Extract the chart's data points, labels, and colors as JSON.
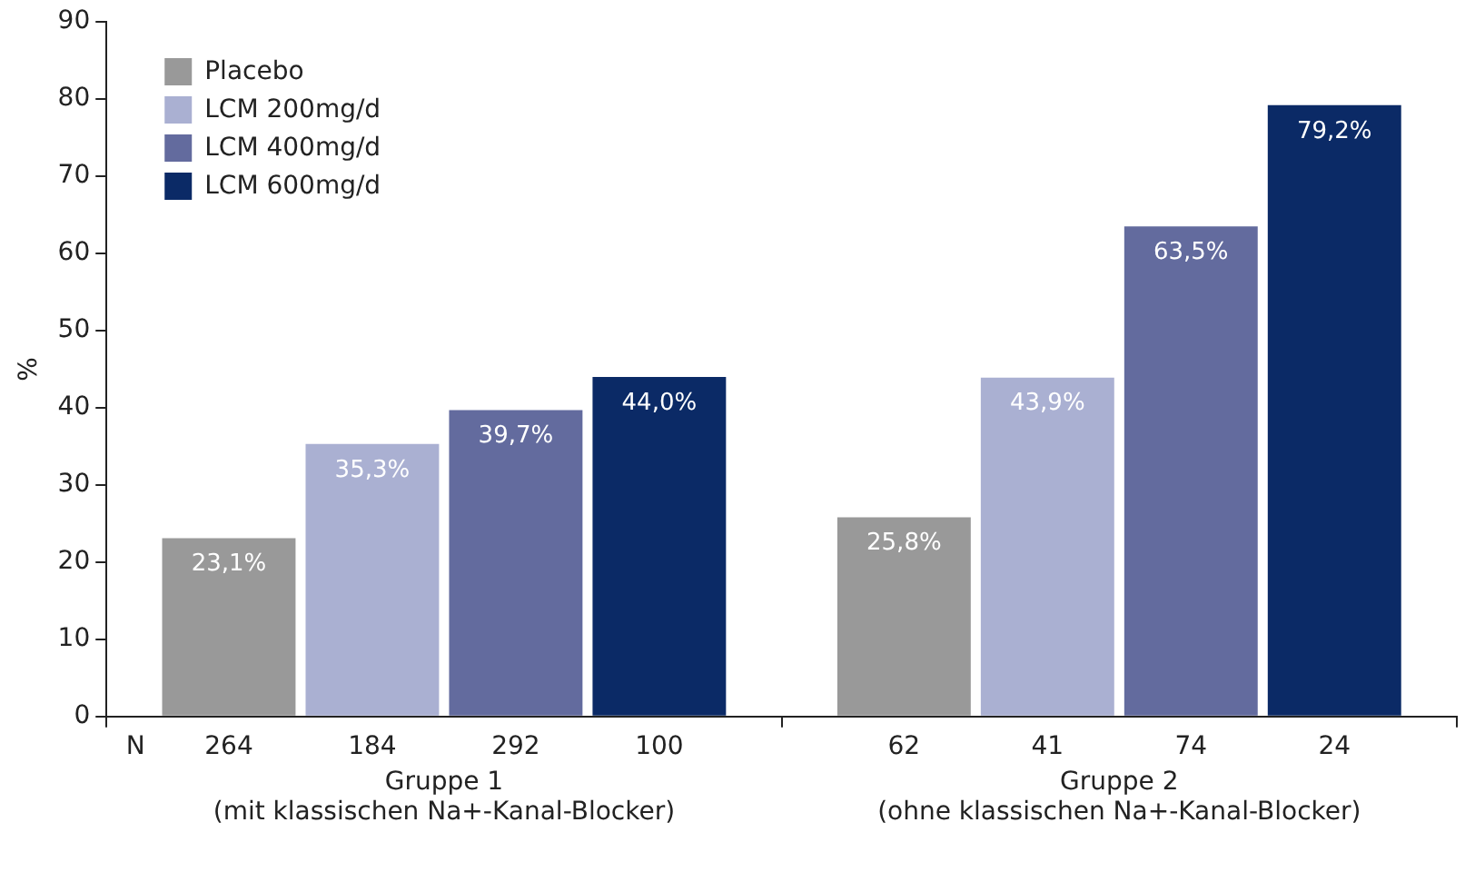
{
  "chart_data": {
    "type": "bar",
    "categories": [
      "Gruppe 1\n(mit klassischen Na+-Kanal-Blocker)",
      "Gruppe 2\n(ohne klassischen Na+-Kanal-Blocker)"
    ],
    "series": [
      {
        "name": "Placebo",
        "color": "#999999",
        "values": [
          23.1,
          25.8
        ],
        "value_labels": [
          "23,1%",
          "25,8%"
        ]
      },
      {
        "name": "LCM 200mg/d",
        "color": "#aab0d2",
        "values": [
          35.3,
          43.9
        ],
        "value_labels": [
          "35,3%",
          "43,9%"
        ]
      },
      {
        "name": "LCM 400mg/d",
        "color": "#636b9e",
        "values": [
          39.7,
          63.5
        ],
        "value_labels": [
          "39,7%",
          "63,5%"
        ]
      },
      {
        "name": "LCM 600mg/d",
        "color": "#0b2a66",
        "values": [
          44.0,
          79.2
        ],
        "value_labels": [
          "44,0%",
          "79,2%"
        ]
      }
    ],
    "ylabel": "%",
    "ylim": [
      0,
      90
    ],
    "yticks": [
      0,
      10,
      20,
      30,
      40,
      50,
      60,
      70,
      80,
      90
    ],
    "annotations": [
      "N",
      "264",
      "184",
      "292",
      "100",
      "62",
      "41",
      "74",
      "24"
    ],
    "grid": false,
    "legend": "top left"
  }
}
